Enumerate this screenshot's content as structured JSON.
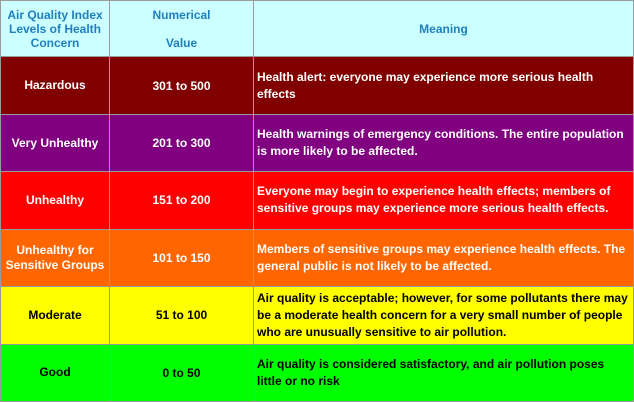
{
  "header": {
    "level_lines": [
      "Air Quality Index",
      "Levels of Health",
      "Concern"
    ],
    "value_lines": [
      "Numerical",
      "Value"
    ],
    "meaning": "Meaning"
  },
  "rows": [
    {
      "level_lines": [
        "Hazardous"
      ],
      "value": "301 to 500",
      "meaning": "Health alert: everyone may experience more serious health effects",
      "color": "#800000",
      "text_color": "#ffffff"
    },
    {
      "level_lines": [
        "Very Unhealthy"
      ],
      "value": "201 to 300",
      "meaning": "Health warnings of emergency conditions. The entire population is more likely to be affected.",
      "color": "#800080",
      "text_color": "#ffffff"
    },
    {
      "level_lines": [
        "Unhealthy"
      ],
      "value": "151 to 200",
      "meaning": "Everyone may begin to experience health effects; members of sensitive groups may experience more serious health effects.",
      "color": "#ff0000",
      "text_color": "#ffffff"
    },
    {
      "level_lines": [
        "Unhealthy for",
        "Sensitive Groups"
      ],
      "value": "101 to 150",
      "meaning": "Members of sensitive groups may experience health effects. The general public is not likely to be affected.",
      "color": "#ff6600",
      "text_color": "#ffffff"
    },
    {
      "level_lines": [
        "Moderate"
      ],
      "value": "51 to 100",
      "meaning": "Air quality is acceptable; however, for some pollutants there may be a moderate health concern for a very small number of people who are unusually sensitive to air pollution.",
      "color": "#ffff00",
      "text_color": "#000000"
    },
    {
      "level_lines": [
        "Good"
      ],
      "value": "0 to 50",
      "meaning": "Air quality is considered satisfactory, and air pollution poses little or no risk",
      "color": "#00ff00",
      "text_color": "#000000"
    }
  ],
  "colors": {
    "header_bg": "#ccffff",
    "header_text": "#1f7fbf",
    "grid": "#9a9a9a"
  }
}
